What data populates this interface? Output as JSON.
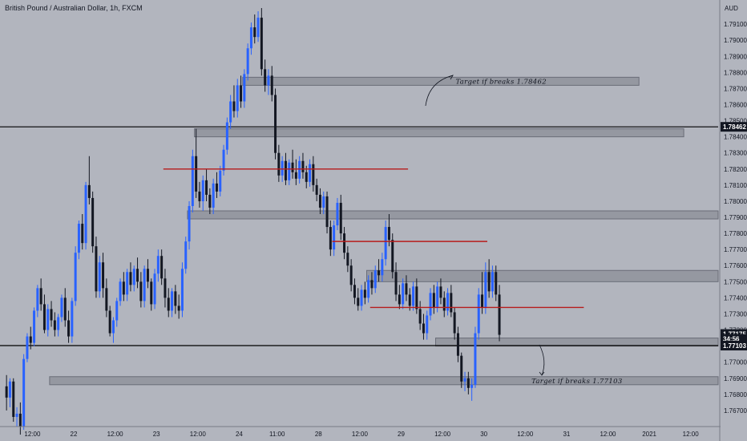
{
  "header": {
    "title": "British Pound / Australian Dollar, 1h, FXCM"
  },
  "colors": {
    "background": "#b2b5be",
    "bull": "#2962ff",
    "bear": "#131722",
    "zone_fill": "#9598a1",
    "zone_stroke": "#6a6d78",
    "red_line": "#b71c1c",
    "black_line": "#000000"
  },
  "chart_data": {
    "type": "candlestick",
    "title": "British Pound / Australian Dollar, 1h, FXCM",
    "currency_label": "AUD",
    "ylim": [
      1.766,
      1.7925
    ],
    "y_ticks": [
      "1.79100",
      "1.79000",
      "1.78900",
      "1.78800",
      "1.78700",
      "1.78600",
      "1.78500",
      "1.78400",
      "1.78300",
      "1.78200",
      "1.78100",
      "1.78000",
      "1.77900",
      "1.77800",
      "1.77700",
      "1.77600",
      "1.77500",
      "1.77400",
      "1.77300",
      "1.77200",
      "1.77000",
      "1.76900",
      "1.76800",
      "1.76700"
    ],
    "x_ticks": [
      {
        "label": "12:00",
        "bar": 8
      },
      {
        "label": "22",
        "bar": 20
      },
      {
        "label": "12:00",
        "bar": 32
      },
      {
        "label": "23",
        "bar": 44
      },
      {
        "label": "12:00",
        "bar": 56
      },
      {
        "label": "24",
        "bar": 68
      },
      {
        "label": "11:00",
        "bar": 79
      },
      {
        "label": "28",
        "bar": 91
      },
      {
        "label": "12:00",
        "bar": 103
      },
      {
        "label": "29",
        "bar": 115
      },
      {
        "label": "12:00",
        "bar": 127
      },
      {
        "label": "30",
        "bar": 139
      },
      {
        "label": "12:00",
        "bar": 151
      },
      {
        "label": "31",
        "bar": 163
      },
      {
        "label": "12:00",
        "bar": 175
      },
      {
        "label": "2021",
        "bar": 187
      },
      {
        "label": "12:00",
        "bar": 199
      }
    ],
    "price_tags": [
      {
        "label": "1.78462",
        "value": 1.78462
      },
      {
        "label": "1.77175",
        "value": 1.77175
      },
      {
        "label": "34:56",
        "value": 1.77145
      },
      {
        "label": "1.77103",
        "value": 1.77103
      }
    ],
    "horizontal_lines": [
      {
        "name": "resistance",
        "value": 1.78462,
        "color": "#000000"
      },
      {
        "name": "support",
        "value": 1.77103,
        "color": "#000000"
      }
    ],
    "red_lines": [
      {
        "value": 1.782,
        "from_bar": 46,
        "to_bar": 117
      },
      {
        "value": 1.7775,
        "from_bar": 95,
        "to_bar": 140
      },
      {
        "value": 1.7734,
        "from_bar": 106,
        "to_bar": 168
      }
    ],
    "zones": [
      {
        "low": 1.7872,
        "high": 1.7877,
        "from_bar": 69,
        "to_bar": 184
      },
      {
        "low": 1.784,
        "high": 1.7845,
        "from_bar": 55,
        "to_bar": 197
      },
      {
        "low": 1.7789,
        "high": 1.7794,
        "from_bar": 53,
        "to_bar": 214
      },
      {
        "low": 1.775,
        "high": 1.7757,
        "from_bar": 105,
        "to_bar": 214
      },
      {
        "low": 1.771,
        "high": 1.7715,
        "from_bar": 125,
        "to_bar": 214
      },
      {
        "low": 1.7686,
        "high": 1.7691,
        "from_bar": 13,
        "to_bar": 214
      }
    ],
    "annotations": [
      {
        "text": "Target if breaks 1.78462",
        "value": 1.78745,
        "bar": 144
      },
      {
        "text": "Target if breaks 1.77103",
        "value": 1.76885,
        "bar": 166
      }
    ],
    "candles": [
      [
        1.7685,
        1.7692,
        1.767,
        1.7678
      ],
      [
        1.7678,
        1.769,
        1.7672,
        1.7688
      ],
      [
        1.7688,
        1.769,
        1.7663,
        1.7666
      ],
      [
        1.7666,
        1.7672,
        1.766,
        1.7668
      ],
      [
        1.7668,
        1.7675,
        1.7655,
        1.766
      ],
      [
        1.766,
        1.7705,
        1.7658,
        1.7702
      ],
      [
        1.7702,
        1.7718,
        1.77,
        1.7716
      ],
      [
        1.7716,
        1.7722,
        1.7708,
        1.7712
      ],
      [
        1.7712,
        1.7734,
        1.771,
        1.7732
      ],
      [
        1.7732,
        1.7748,
        1.7728,
        1.7746
      ],
      [
        1.7746,
        1.7752,
        1.7732,
        1.7736
      ],
      [
        1.7736,
        1.7742,
        1.7718,
        1.772
      ],
      [
        1.772,
        1.7736,
        1.7716,
        1.7733
      ],
      [
        1.7733,
        1.7738,
        1.7722,
        1.7726
      ],
      [
        1.7726,
        1.7731,
        1.7716,
        1.772
      ],
      [
        1.772,
        1.773,
        1.7716,
        1.7728
      ],
      [
        1.7728,
        1.7742,
        1.7725,
        1.774
      ],
      [
        1.774,
        1.7746,
        1.7722,
        1.7726
      ],
      [
        1.7726,
        1.7732,
        1.7712,
        1.7716
      ],
      [
        1.7716,
        1.774,
        1.7712,
        1.7738
      ],
      [
        1.7738,
        1.7772,
        1.7735,
        1.7768
      ],
      [
        1.7768,
        1.7788,
        1.7764,
        1.7786
      ],
      [
        1.7786,
        1.7792,
        1.777,
        1.7774
      ],
      [
        1.7774,
        1.7812,
        1.777,
        1.781
      ],
      [
        1.781,
        1.7828,
        1.7798,
        1.7802
      ],
      [
        1.7802,
        1.7806,
        1.7768,
        1.7772
      ],
      [
        1.7772,
        1.7778,
        1.774,
        1.7744
      ],
      [
        1.7744,
        1.7766,
        1.774,
        1.7762
      ],
      [
        1.7762,
        1.7768,
        1.774,
        1.7746
      ],
      [
        1.7746,
        1.7752,
        1.7728,
        1.7732
      ],
      [
        1.7732,
        1.7735,
        1.7716,
        1.7718
      ],
      [
        1.7718,
        1.7728,
        1.7712,
        1.7726
      ],
      [
        1.7726,
        1.774,
        1.7722,
        1.7738
      ],
      [
        1.7738,
        1.7752,
        1.7735,
        1.775
      ],
      [
        1.775,
        1.7756,
        1.7738,
        1.7742
      ],
      [
        1.7742,
        1.7758,
        1.7738,
        1.7756
      ],
      [
        1.7756,
        1.7762,
        1.7744,
        1.7748
      ],
      [
        1.7748,
        1.776,
        1.7744,
        1.7758
      ],
      [
        1.7758,
        1.7765,
        1.7746,
        1.775
      ],
      [
        1.775,
        1.7756,
        1.7734,
        1.7738
      ],
      [
        1.7738,
        1.776,
        1.7734,
        1.7758
      ],
      [
        1.7758,
        1.7764,
        1.7746,
        1.775
      ],
      [
        1.775,
        1.7752,
        1.7732,
        1.7736
      ],
      [
        1.7736,
        1.7758,
        1.7733,
        1.7755
      ],
      [
        1.7755,
        1.777,
        1.775,
        1.7766
      ],
      [
        1.7766,
        1.777,
        1.7748,
        1.7752
      ],
      [
        1.7752,
        1.7758,
        1.7734,
        1.774
      ],
      [
        1.774,
        1.7746,
        1.7728,
        1.7732
      ],
      [
        1.7732,
        1.7746,
        1.7728,
        1.7744
      ],
      [
        1.7744,
        1.7748,
        1.773,
        1.7735
      ],
      [
        1.7735,
        1.7742,
        1.7727,
        1.7732
      ],
      [
        1.7732,
        1.7762,
        1.7728,
        1.7758
      ],
      [
        1.7758,
        1.7778,
        1.7755,
        1.7775
      ],
      [
        1.7775,
        1.78,
        1.777,
        1.7797
      ],
      [
        1.7797,
        1.7832,
        1.7793,
        1.7828
      ],
      [
        1.7828,
        1.7845,
        1.7802,
        1.7806
      ],
      [
        1.7806,
        1.7812,
        1.7796,
        1.78
      ],
      [
        1.78,
        1.7816,
        1.7794,
        1.7813
      ],
      [
        1.7813,
        1.782,
        1.78,
        1.7804
      ],
      [
        1.7804,
        1.7808,
        1.7792,
        1.7796
      ],
      [
        1.7796,
        1.7814,
        1.7792,
        1.7811
      ],
      [
        1.7811,
        1.7818,
        1.7802,
        1.7806
      ],
      [
        1.7806,
        1.7822,
        1.7803,
        1.7819
      ],
      [
        1.7819,
        1.7835,
        1.7816,
        1.7832
      ],
      [
        1.7832,
        1.7852,
        1.7829,
        1.7849
      ],
      [
        1.7849,
        1.7866,
        1.7845,
        1.7862
      ],
      [
        1.7862,
        1.7872,
        1.7852,
        1.7856
      ],
      [
        1.7856,
        1.7876,
        1.7852,
        1.7872
      ],
      [
        1.7872,
        1.7878,
        1.7858,
        1.7862
      ],
      [
        1.7862,
        1.7882,
        1.7858,
        1.7879
      ],
      [
        1.7879,
        1.7898,
        1.7875,
        1.7895
      ],
      [
        1.7895,
        1.7911,
        1.7891,
        1.7908
      ],
      [
        1.7908,
        1.7916,
        1.7898,
        1.7902
      ],
      [
        1.7902,
        1.7918,
        1.7899,
        1.7914
      ],
      [
        1.7914,
        1.792,
        1.7878,
        1.7882
      ],
      [
        1.7882,
        1.7888,
        1.7868,
        1.7872
      ],
      [
        1.7872,
        1.7882,
        1.7866,
        1.7878
      ],
      [
        1.7878,
        1.7884,
        1.7862,
        1.7866
      ],
      [
        1.7866,
        1.787,
        1.7826,
        1.783
      ],
      [
        1.783,
        1.7835,
        1.7812,
        1.7816
      ],
      [
        1.7816,
        1.7828,
        1.7812,
        1.7825
      ],
      [
        1.7825,
        1.783,
        1.781,
        1.7813
      ],
      [
        1.7813,
        1.7826,
        1.781,
        1.7824
      ],
      [
        1.7824,
        1.7832,
        1.7814,
        1.7818
      ],
      [
        1.7818,
        1.7826,
        1.781,
        1.7814
      ],
      [
        1.7814,
        1.7828,
        1.7811,
        1.7825
      ],
      [
        1.7825,
        1.783,
        1.7814,
        1.7818
      ],
      [
        1.7818,
        1.7822,
        1.7808,
        1.7812
      ],
      [
        1.7812,
        1.7826,
        1.7809,
        1.7823
      ],
      [
        1.7823,
        1.7828,
        1.7806,
        1.781
      ],
      [
        1.781,
        1.7814,
        1.78,
        1.7804
      ],
      [
        1.7804,
        1.7808,
        1.7792,
        1.7796
      ],
      [
        1.7796,
        1.7806,
        1.7792,
        1.7803
      ],
      [
        1.7803,
        1.7806,
        1.778,
        1.7784
      ],
      [
        1.7784,
        1.7788,
        1.7766,
        1.777
      ],
      [
        1.777,
        1.7788,
        1.7766,
        1.7785
      ],
      [
        1.7785,
        1.7802,
        1.7782,
        1.7799
      ],
      [
        1.7799,
        1.7804,
        1.7776,
        1.778
      ],
      [
        1.778,
        1.7784,
        1.7764,
        1.7768
      ],
      [
        1.7768,
        1.7772,
        1.7756,
        1.776
      ],
      [
        1.776,
        1.7764,
        1.7744,
        1.7748
      ],
      [
        1.7748,
        1.7752,
        1.7736,
        1.774
      ],
      [
        1.774,
        1.7746,
        1.7732,
        1.7735
      ],
      [
        1.7735,
        1.7748,
        1.7732,
        1.7745
      ],
      [
        1.7745,
        1.775,
        1.7736,
        1.774
      ],
      [
        1.774,
        1.7754,
        1.7737,
        1.7751
      ],
      [
        1.7751,
        1.7756,
        1.7742,
        1.7746
      ],
      [
        1.7746,
        1.776,
        1.7743,
        1.7757
      ],
      [
        1.7757,
        1.7764,
        1.775,
        1.7754
      ],
      [
        1.7754,
        1.7768,
        1.775,
        1.7764
      ],
      [
        1.7764,
        1.7788,
        1.776,
        1.7784
      ],
      [
        1.7784,
        1.7792,
        1.7772,
        1.7776
      ],
      [
        1.7776,
        1.778,
        1.7752,
        1.7756
      ],
      [
        1.7756,
        1.7762,
        1.7738,
        1.7742
      ],
      [
        1.7742,
        1.7748,
        1.7733,
        1.7736
      ],
      [
        1.7736,
        1.7752,
        1.7733,
        1.7749
      ],
      [
        1.7749,
        1.7754,
        1.7738,
        1.7742
      ],
      [
        1.7742,
        1.7746,
        1.7732,
        1.7735
      ],
      [
        1.7735,
        1.775,
        1.7732,
        1.7747
      ],
      [
        1.7747,
        1.7752,
        1.773,
        1.7733
      ],
      [
        1.7733,
        1.7738,
        1.772,
        1.7724
      ],
      [
        1.7724,
        1.773,
        1.7714,
        1.7718
      ],
      [
        1.7718,
        1.7732,
        1.7714,
        1.7729
      ],
      [
        1.7729,
        1.7746,
        1.7726,
        1.7743
      ],
      [
        1.7743,
        1.7748,
        1.773,
        1.7734
      ],
      [
        1.7734,
        1.775,
        1.7731,
        1.7747
      ],
      [
        1.7747,
        1.7752,
        1.7736,
        1.774
      ],
      [
        1.774,
        1.7744,
        1.7728,
        1.7732
      ],
      [
        1.7732,
        1.7746,
        1.7729,
        1.7743
      ],
      [
        1.7743,
        1.7748,
        1.7728,
        1.7731
      ],
      [
        1.7731,
        1.7734,
        1.7714,
        1.7718
      ],
      [
        1.7718,
        1.7722,
        1.77,
        1.7704
      ],
      [
        1.7704,
        1.7706,
        1.7684,
        1.7688
      ],
      [
        1.7688,
        1.7694,
        1.7682,
        1.769
      ],
      [
        1.769,
        1.7694,
        1.768,
        1.7684
      ],
      [
        1.7684,
        1.769,
        1.7676,
        1.7686
      ],
      [
        1.7686,
        1.7722,
        1.7684,
        1.7718
      ],
      [
        1.7718,
        1.7746,
        1.7714,
        1.7742
      ],
      [
        1.7742,
        1.7756,
        1.773,
        1.7734
      ],
      [
        1.7734,
        1.7762,
        1.773,
        1.7756
      ],
      [
        1.7756,
        1.7764,
        1.774,
        1.7744
      ],
      [
        1.7744,
        1.776,
        1.774,
        1.7756
      ],
      [
        1.7756,
        1.776,
        1.7738,
        1.7742
      ],
      [
        1.7742,
        1.7748,
        1.7713,
        1.7717
      ]
    ]
  }
}
